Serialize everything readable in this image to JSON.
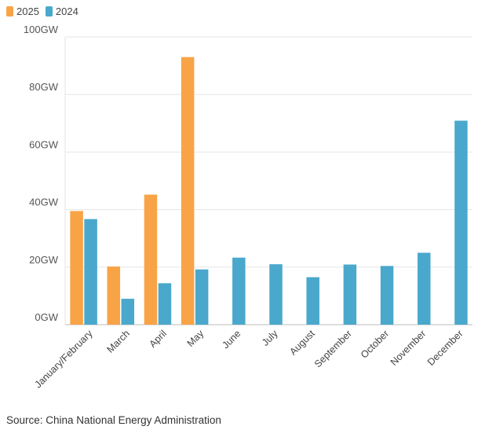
{
  "colors": {
    "s2025": "#F9A347",
    "s2024": "#4AA8CC",
    "grid": "#E6E6E6",
    "axis": "#BDBDBD"
  },
  "chart_data": {
    "type": "bar",
    "categories": [
      "January/February",
      "March",
      "April",
      "May",
      "June",
      "July",
      "August",
      "September",
      "October",
      "November",
      "December"
    ],
    "series": [
      {
        "name": "2025",
        "values": [
          39.5,
          20.2,
          45.2,
          93.0,
          null,
          null,
          null,
          null,
          null,
          null,
          null
        ]
      },
      {
        "name": "2024",
        "values": [
          36.7,
          9.0,
          14.4,
          19.2,
          23.3,
          21.0,
          16.5,
          20.9,
          20.4,
          25.0,
          70.9
        ]
      }
    ],
    "yticks": [
      0,
      20,
      40,
      60,
      80,
      100
    ],
    "ytick_labels": [
      "0GW",
      "20GW",
      "40GW",
      "60GW",
      "80GW",
      "100GW"
    ],
    "ylim": [
      0,
      100
    ],
    "unit": "GW",
    "grid": true,
    "legend": "top-left"
  },
  "source": "Source: China National Energy Administration"
}
